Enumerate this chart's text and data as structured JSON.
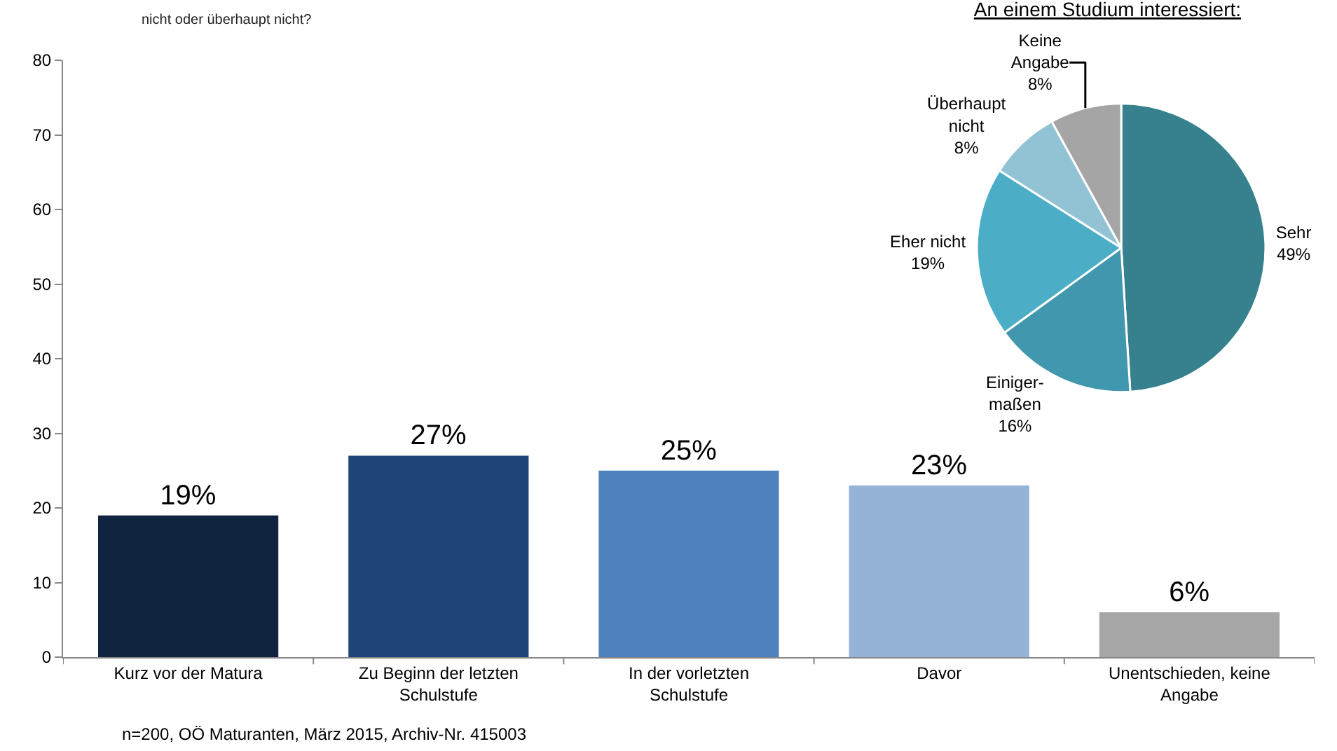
{
  "chart_data": [
    {
      "type": "bar",
      "categories": [
        "Kurz vor der Matura",
        "Zu Beginn der letzten\nSchulstufe",
        "In der vorletzten\nSchulstufe",
        "Davor",
        "Unentschieden, keine\nAngabe"
      ],
      "values": [
        19,
        27,
        25,
        23,
        6
      ],
      "value_labels": [
        "19%",
        "27%",
        "25%",
        "23%",
        "6%"
      ],
      "colors": [
        "#10233f",
        "#1f4677",
        "#4f81bd",
        "#95b3d7",
        "#a6a6a6"
      ],
      "ylim": [
        0,
        80
      ],
      "yticks": [
        0,
        10,
        20,
        30,
        40,
        50,
        60,
        70,
        80
      ],
      "grid": false,
      "legend": false,
      "annotations": [
        "nicht oder überhaupt nicht?",
        "n=200, OÖ Maturanten, März 2015, Archiv-Nr. 415003"
      ]
    },
    {
      "type": "pie",
      "title": "An einem Studium interessiert:",
      "categories": [
        "Sehr",
        "Einiger-\nmaßen",
        "Eher nicht",
        "Überhaupt\nnicht",
        "Keine\nAngabe"
      ],
      "values": [
        49,
        16,
        19,
        8,
        8
      ],
      "colors": [
        "#37818f",
        "#4197ad",
        "#4badc6",
        "#92c3d5",
        "#a5a5a5"
      ],
      "value_labels": [
        "49%",
        "16%",
        "19%",
        "8%",
        "8%"
      ],
      "legend": false
    }
  ]
}
